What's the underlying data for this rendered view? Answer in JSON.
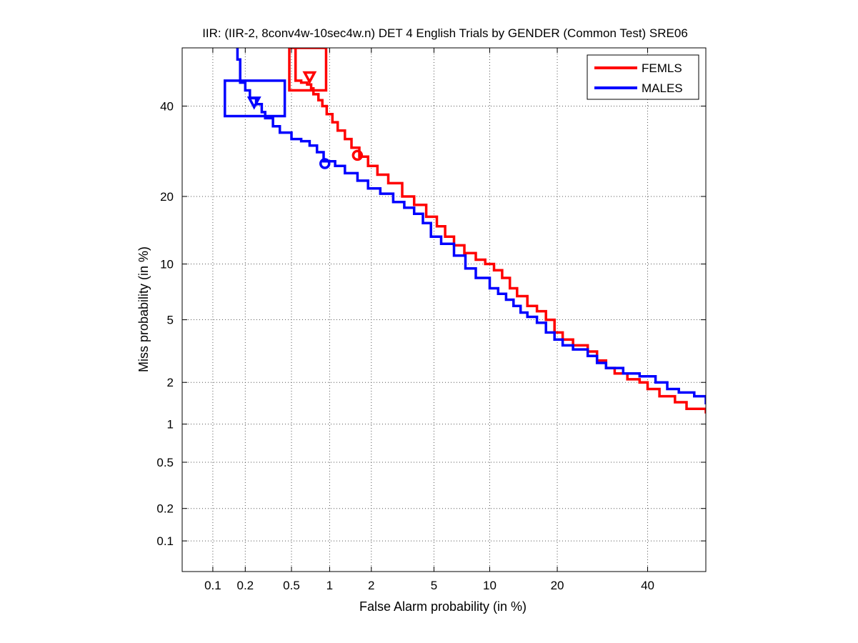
{
  "chart_data": {
    "type": "line",
    "title": "IIR: (IIR-2, 8conv4w-10sec4w.n) DET 4 English Trials by GENDER (Common Test) SRE06",
    "xlabel": "False Alarm probability (in %)",
    "ylabel": "Miss probability (in %)",
    "x_scale": "probit",
    "y_scale": "probit",
    "xlim": [
      0.05,
      55
    ],
    "ylim": [
      0.05,
      55
    ],
    "x_ticks": [
      0.1,
      0.2,
      0.5,
      1,
      2,
      5,
      10,
      20,
      40
    ],
    "x_tick_labels": [
      "0.1",
      "0.2",
      "0.5",
      "1",
      "2",
      "5",
      "10",
      "20",
      "40"
    ],
    "y_ticks": [
      0.1,
      0.2,
      0.5,
      1,
      2,
      5,
      10,
      20,
      40
    ],
    "y_tick_labels": [
      "0.1",
      "0.2",
      "0.5",
      "1",
      "2",
      "5",
      "10",
      "20",
      "40"
    ],
    "grid": true,
    "legend": {
      "position": "top-right",
      "entries": [
        "FEMLS",
        "MALES"
      ]
    },
    "colors": {
      "FEMLS": "#ff0000",
      "MALES": "#0000ff"
    },
    "series": [
      {
        "name": "FEMLS",
        "points": [
          [
            0.54,
            55
          ],
          [
            0.54,
            46.5
          ],
          [
            0.6,
            46
          ],
          [
            0.67,
            45.5
          ],
          [
            0.72,
            44.5
          ],
          [
            0.75,
            43
          ],
          [
            0.82,
            41.5
          ],
          [
            0.88,
            40
          ],
          [
            0.95,
            38
          ],
          [
            1.05,
            36
          ],
          [
            1.15,
            34
          ],
          [
            1.3,
            32
          ],
          [
            1.45,
            30
          ],
          [
            1.65,
            28
          ],
          [
            1.9,
            26
          ],
          [
            2.2,
            24.2
          ],
          [
            2.6,
            22.5
          ],
          [
            3.2,
            20
          ],
          [
            3.8,
            18.5
          ],
          [
            4.5,
            16.5
          ],
          [
            5.2,
            15
          ],
          [
            5.8,
            13.5
          ],
          [
            6.5,
            12.3
          ],
          [
            7.4,
            11.3
          ],
          [
            8.5,
            10.5
          ],
          [
            9.5,
            10
          ],
          [
            10.5,
            9.3
          ],
          [
            11.5,
            8.5
          ],
          [
            12.5,
            7.5
          ],
          [
            13.5,
            6.8
          ],
          [
            15,
            6
          ],
          [
            16.5,
            5.6
          ],
          [
            18,
            5
          ],
          [
            19.5,
            4.2
          ],
          [
            21,
            3.8
          ],
          [
            23,
            3.5
          ],
          [
            26,
            3.2
          ],
          [
            28,
            2.8
          ],
          [
            30,
            2.5
          ],
          [
            32,
            2.3
          ],
          [
            35,
            2.1
          ],
          [
            38,
            2.0
          ],
          [
            40,
            1.8
          ],
          [
            43,
            1.6
          ],
          [
            47,
            1.45
          ],
          [
            50,
            1.3
          ],
          [
            55,
            1.2
          ]
        ],
        "markers": [
          {
            "symbol": "circle",
            "x": 1.6,
            "y": 28.3
          },
          {
            "symbol": "triangle-down",
            "x": 0.7,
            "y": 47.5
          }
        ],
        "box": {
          "x": [
            0.48,
            0.94
          ],
          "y": [
            44,
            55
          ]
        }
      },
      {
        "name": "MALES",
        "points": [
          [
            0.17,
            55
          ],
          [
            0.17,
            52
          ],
          [
            0.18,
            46
          ],
          [
            0.2,
            44
          ],
          [
            0.22,
            42
          ],
          [
            0.25,
            40.5
          ],
          [
            0.28,
            38.5
          ],
          [
            0.3,
            37
          ],
          [
            0.35,
            35
          ],
          [
            0.4,
            33.5
          ],
          [
            0.5,
            32
          ],
          [
            0.6,
            31.5
          ],
          [
            0.7,
            30.5
          ],
          [
            0.8,
            29
          ],
          [
            0.9,
            27
          ],
          [
            1.1,
            26
          ],
          [
            1.3,
            24.5
          ],
          [
            1.6,
            23
          ],
          [
            1.9,
            21.5
          ],
          [
            2.3,
            20.5
          ],
          [
            2.8,
            19
          ],
          [
            3.3,
            18
          ],
          [
            3.8,
            17
          ],
          [
            4.3,
            15.5
          ],
          [
            4.8,
            13.5
          ],
          [
            5.5,
            12.5
          ],
          [
            6.5,
            11
          ],
          [
            7.5,
            9.5
          ],
          [
            8.5,
            8.5
          ],
          [
            10,
            7.5
          ],
          [
            11,
            7.0
          ],
          [
            12,
            6.5
          ],
          [
            13,
            6.0
          ],
          [
            14,
            5.5
          ],
          [
            15,
            5.2
          ],
          [
            16.5,
            4.8
          ],
          [
            18,
            4.2
          ],
          [
            19.5,
            3.8
          ],
          [
            21,
            3.5
          ],
          [
            23,
            3.3
          ],
          [
            26,
            3.0
          ],
          [
            28,
            2.7
          ],
          [
            30,
            2.5
          ],
          [
            34,
            2.3
          ],
          [
            38,
            2.2
          ],
          [
            42,
            2.0
          ],
          [
            45,
            1.8
          ],
          [
            48,
            1.7
          ],
          [
            52,
            1.6
          ],
          [
            55,
            1.4
          ]
        ],
        "markers": [
          {
            "symbol": "circle",
            "x": 0.92,
            "y": 26.5
          },
          {
            "symbol": "triangle-down",
            "x": 0.24,
            "y": 41
          }
        ],
        "box": {
          "x": [
            0.13,
            0.44
          ],
          "y": [
            37.5,
            46.5
          ]
        }
      }
    ]
  }
}
